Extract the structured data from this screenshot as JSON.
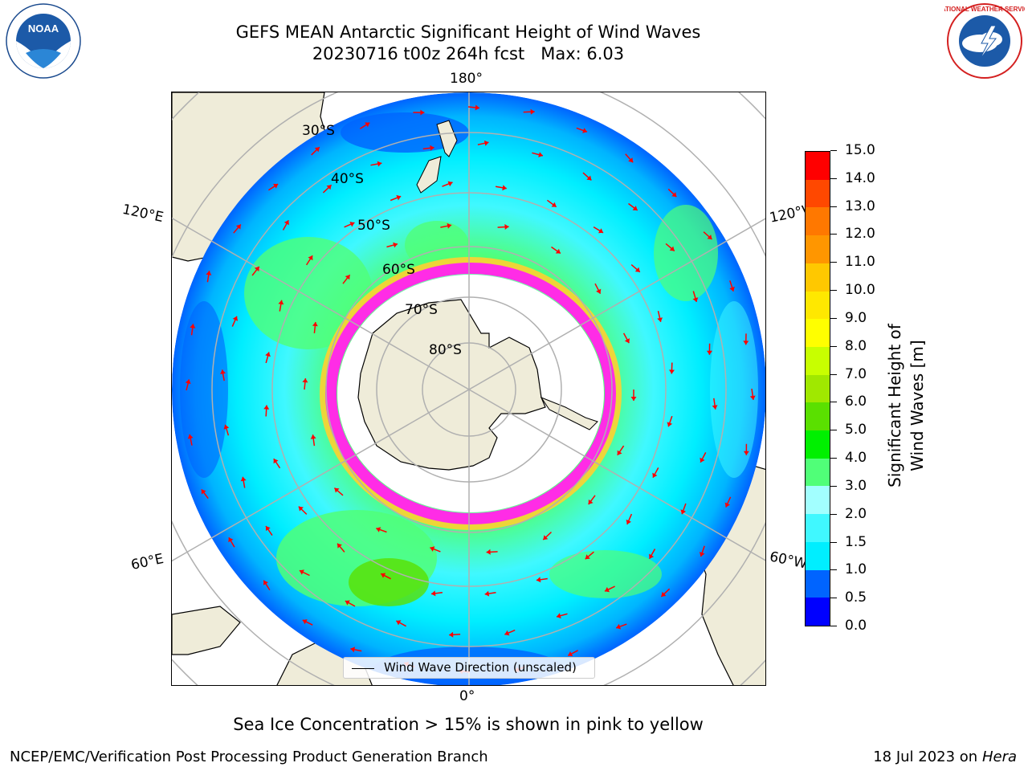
{
  "title": {
    "line1": "GEFS MEAN Antarctic Significant Height of Wind Waves",
    "line2": "20230716 t00z 264h fcst   Max: 6.03"
  },
  "map": {
    "projection": "south-polar-stereographic",
    "longitude_labels": {
      "top": "180°",
      "bottom": "0°",
      "left_upper": "120°E",
      "left_lower": "60°E",
      "right_upper": "120°W",
      "right_lower": "60°W"
    },
    "latitude_labels": [
      "30°S",
      "40°S",
      "50°S",
      "60°S",
      "70°S",
      "80°S"
    ],
    "legend_label": "Wind Wave Direction (unscaled)",
    "colors": {
      "land": "#efecd9",
      "ice_edge_pink": "#ff2ce6",
      "ice_edge_yellow": "#ffd030",
      "arrow": "#ff0000",
      "grid": "#b0b0b0"
    }
  },
  "colorbar": {
    "label": "Significant Height of Wind Waves [m]",
    "ticks": [
      "15.0",
      "14.0",
      "13.0",
      "12.0",
      "11.0",
      "10.0",
      "9.0",
      "8.0",
      "7.0",
      "6.0",
      "5.0",
      "4.0",
      "3.0",
      "2.0",
      "1.5",
      "1.0",
      "0.5",
      "0.0"
    ],
    "colors_bottom_to_top": [
      "#0000ff",
      "#0064ff",
      "#00eeff",
      "#40f8ff",
      "#a2ffff",
      "#50ff78",
      "#00f000",
      "#5ae000",
      "#a0e800",
      "#c8ff00",
      "#ffff00",
      "#ffe800",
      "#ffc800",
      "#ff9600",
      "#ff7800",
      "#ff4800",
      "#ff0000"
    ]
  },
  "caption": "Sea Ice Concentration > 15% is shown in pink to yellow",
  "footer": {
    "left": "NCEP/EMC/Verification Post Processing Product Generation Branch",
    "right_date": "18 Jul 2023 on ",
    "right_host": "Hera"
  },
  "logos": {
    "left_text": "NOAA",
    "right_text": "NATIONAL WEATHER SERVICE"
  }
}
